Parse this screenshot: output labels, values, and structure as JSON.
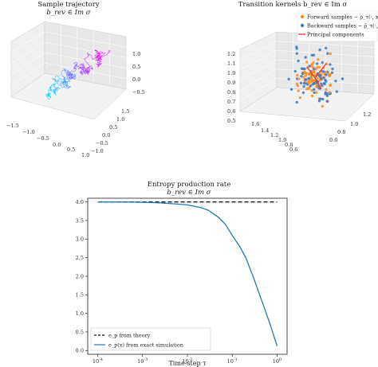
{
  "panels": {
    "trajectory": {
      "title": "Sample trajectory",
      "subtitle": "b_rev ∈ Im σ",
      "x_ticks": [
        "−1.5",
        "−1.0",
        "−0.5",
        "0.0",
        "0.5",
        "1.0"
      ],
      "y_ticks": [
        "−1.0",
        "−0.5",
        "0.0",
        "0.5",
        "1.0",
        "1.5"
      ],
      "z_ticks": [
        "1.0",
        "0.5",
        "0.0",
        "−0.5"
      ],
      "colors": {
        "start": "#00e5ff",
        "end": "#ff00ff"
      }
    },
    "kernels": {
      "title": "Transition kernels b_rev ∈ Im σ",
      "legend": [
        {
          "label": "Forward samples ∼ ρ_τ(·, x₀)",
          "color": "#ff8c1a"
        },
        {
          "label": "Backward samples ∼ ρ̄_τ(·, x₀)",
          "color": "#3b78c2"
        },
        {
          "label": "Principal components",
          "color": "#e23b3b"
        }
      ],
      "z_ticks": [
        "1.2",
        "1.1",
        "1.0",
        "0.9",
        "0.8",
        "0.7",
        "0.6",
        "0.5"
      ],
      "x_ticks": [
        "1.6",
        "1.4",
        "1.2",
        "1.0",
        "0.8",
        "0.6"
      ],
      "y_ticks": [
        "0.6",
        "0.8",
        "1.0",
        "1.2"
      ]
    }
  },
  "chart_data": {
    "type": "line",
    "title": "Entropy production rate",
    "subtitle": "b_rev ∈ Im σ",
    "xlabel": "Time-step τ",
    "ylabel": "",
    "xscale": "log",
    "xlim": [
      0.0001,
      1
    ],
    "ylim": [
      0.0,
      4.0
    ],
    "x_tick_labels": [
      "10^-4",
      "10^-3",
      "10^-2",
      "10^-1",
      "10^0"
    ],
    "x_ticks": [
      0.0001,
      0.001,
      0.01,
      0.1,
      1
    ],
    "y_tick_labels": [
      "0.0",
      "0.5",
      "1.0",
      "1.5",
      "2.0",
      "2.5",
      "3.0",
      "3.5",
      "4.0"
    ],
    "y_ticks": [
      0.0,
      0.5,
      1.0,
      1.5,
      2.0,
      2.5,
      3.0,
      3.5,
      4.0
    ],
    "legend_position": "lower-left",
    "series": [
      {
        "name": "e_p from theory",
        "color": "#111111",
        "style": "dashed",
        "x": [
          0.0001,
          1
        ],
        "values": [
          4.0,
          4.0
        ]
      },
      {
        "name": "e_p(x) from exact simulation",
        "color": "#1f77b4",
        "style": "solid",
        "x": [
          0.0001,
          0.0002,
          0.0005,
          0.001,
          0.002,
          0.005,
          0.01,
          0.02,
          0.03,
          0.05,
          0.07,
          0.1,
          0.15,
          0.2,
          0.3,
          0.5,
          0.7,
          1.0
        ],
        "values": [
          4.0,
          3.999,
          3.995,
          3.99,
          3.98,
          3.95,
          3.92,
          3.85,
          3.77,
          3.58,
          3.4,
          3.1,
          2.78,
          2.5,
          1.95,
          1.2,
          0.7,
          0.12
        ]
      }
    ]
  }
}
